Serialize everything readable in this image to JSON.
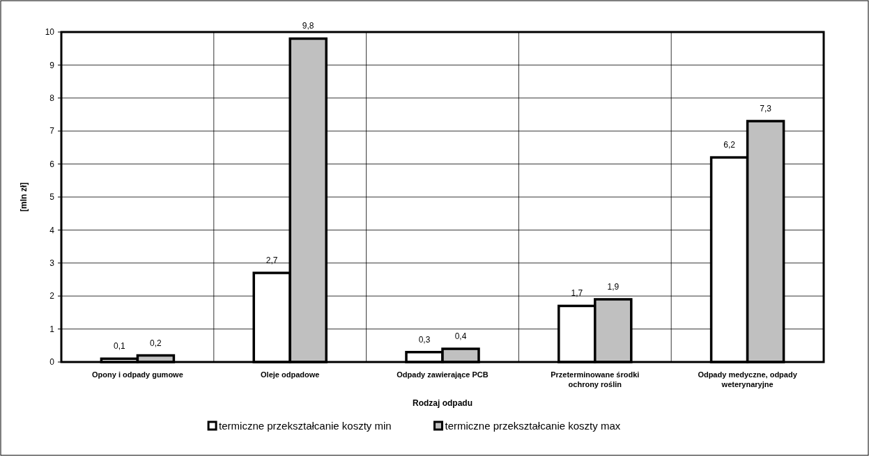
{
  "chart_data": {
    "type": "bar",
    "xlabel": "Rodzaj odpadu",
    "ylabel": "[mln zł]",
    "categories": [
      "Opony i odpady gumowe",
      "Oleje odpadowe",
      "Odpady zawierające PCB",
      "Przeterminowane środki ochrony roślin",
      "Odpady medyczne, odpady weterynaryjne"
    ],
    "series": [
      {
        "name": "termiczne przekształcanie koszty min",
        "color": "#ffffff",
        "values": [
          0.1,
          2.7,
          0.3,
          1.7,
          6.2
        ],
        "value_labels": [
          "0,1",
          "2,7",
          "0,3",
          "1,7",
          "6,2"
        ]
      },
      {
        "name": "termiczne przekształcanie koszty max",
        "color": "#c0c0c0",
        "values": [
          0.2,
          9.8,
          0.4,
          1.9,
          7.3
        ],
        "value_labels": [
          "0,2",
          "9,8",
          "0,4",
          "1,9",
          "7,3"
        ]
      }
    ],
    "ylim": [
      0,
      10
    ],
    "yticks": [
      0,
      1,
      2,
      3,
      4,
      5,
      6,
      7,
      8,
      9,
      10
    ],
    "grid": true,
    "legend": "bottom"
  }
}
